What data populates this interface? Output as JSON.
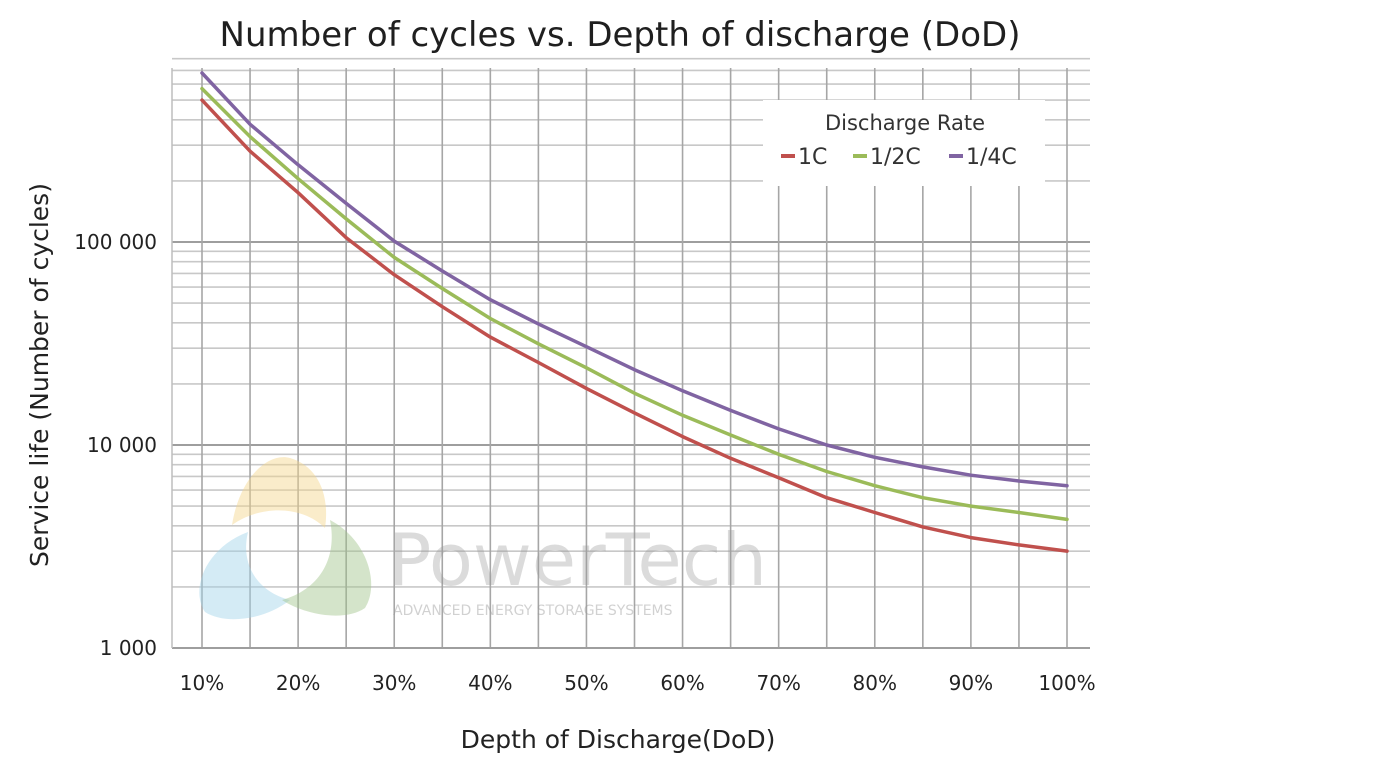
{
  "chart_data": {
    "type": "line",
    "title": "Number of cycles vs. Depth of discharge (DoD)",
    "xlabel": "Depth of Discharge(DoD)",
    "ylabel": "Service life (Number of cycles)",
    "x": [
      10,
      15,
      20,
      25,
      30,
      35,
      40,
      45,
      50,
      55,
      60,
      65,
      70,
      75,
      80,
      85,
      90,
      95,
      100
    ],
    "x_ticks": [
      10,
      20,
      30,
      40,
      50,
      60,
      70,
      80,
      90,
      100
    ],
    "x_tick_labels": [
      "10%",
      "20%",
      "30%",
      "40%",
      "50%",
      "60%",
      "70%",
      "80%",
      "90%",
      "100%"
    ],
    "xlim": [
      10,
      100
    ],
    "y_scale": "log",
    "ylim": [
      1000,
      800000
    ],
    "y_ticks": [
      1000,
      10000,
      100000
    ],
    "y_tick_labels": [
      "1 000",
      "10 000",
      "100 000"
    ],
    "grid": true,
    "legend": {
      "title": "Discharge Rate",
      "position": "top-right"
    },
    "series": [
      {
        "name": "1C",
        "color": "#c0504d",
        "values": [
          500000,
          280000,
          175000,
          105000,
          69000,
          48000,
          34000,
          25500,
          19000,
          14400,
          11000,
          8600,
          6900,
          5500,
          4650,
          3950,
          3500,
          3220,
          3000
        ]
      },
      {
        "name": "1/2C",
        "color": "#9bbb59",
        "values": [
          570000,
          330000,
          205000,
          130000,
          84000,
          59000,
          42000,
          31500,
          24000,
          18000,
          14000,
          11200,
          9000,
          7400,
          6300,
          5500,
          5000,
          4650,
          4300
        ]
      },
      {
        "name": "1/4C",
        "color": "#8064a2",
        "values": [
          680000,
          380000,
          240000,
          155000,
          101000,
          72000,
          52000,
          39500,
          30500,
          23500,
          18500,
          14800,
          12000,
          10000,
          8700,
          7800,
          7100,
          6650,
          6300
        ]
      }
    ]
  },
  "watermark": {
    "name": "PowerTech",
    "tagline": "ADVANCED ENERGY STORAGE SYSTEMS"
  }
}
